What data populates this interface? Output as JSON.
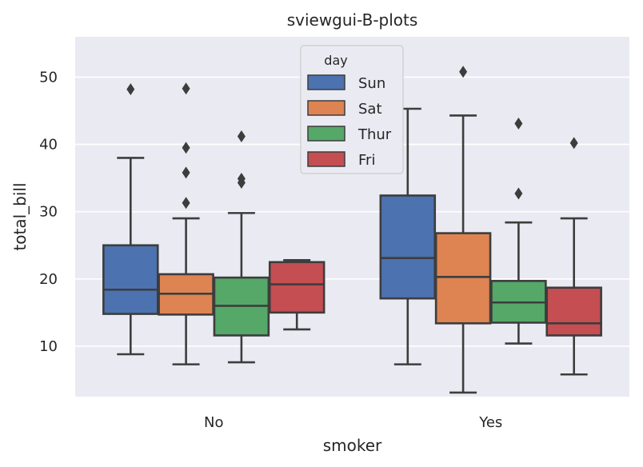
{
  "chart_data": {
    "type": "box",
    "title": "sviewgui-B-plots",
    "xlabel": "smoker",
    "ylabel": "total_bill",
    "categories": [
      "No",
      "Yes"
    ],
    "ylim": [
      2.5,
      56
    ],
    "yticks": [
      10,
      20,
      30,
      40,
      50
    ],
    "grid": true,
    "legend": {
      "title": "day",
      "placement": "top-center"
    },
    "colors": {
      "Sun": "#4c72b0",
      "Sat": "#dd8452",
      "Thur": "#55a868",
      "Fri": "#c44e52",
      "line": "#3d3d3d",
      "background": "#eaeaf2",
      "grid": "#ffffff"
    },
    "series": [
      {
        "name": "Sun",
        "boxes": [
          {
            "category": "No",
            "whislo": 8.8,
            "q1": 14.8,
            "med": 18.4,
            "q3": 25.0,
            "whishi": 38.0,
            "fliers": [
              48.2
            ]
          },
          {
            "category": "Yes",
            "whislo": 7.3,
            "q1": 17.1,
            "med": 23.1,
            "q3": 32.4,
            "whishi": 45.3,
            "fliers": []
          }
        ]
      },
      {
        "name": "Sat",
        "boxes": [
          {
            "category": "No",
            "whislo": 7.3,
            "q1": 14.7,
            "med": 17.8,
            "q3": 20.7,
            "whishi": 29.0,
            "fliers": [
              31.3,
              35.8,
              39.5,
              48.3
            ]
          },
          {
            "category": "Yes",
            "whislo": 3.1,
            "q1": 13.4,
            "med": 20.3,
            "q3": 26.8,
            "whishi": 44.3,
            "fliers": [
              50.8
            ]
          }
        ]
      },
      {
        "name": "Thur",
        "boxes": [
          {
            "category": "No",
            "whislo": 7.6,
            "q1": 11.6,
            "med": 16.0,
            "q3": 20.2,
            "whishi": 29.8,
            "fliers": [
              34.3,
              34.9,
              41.2
            ]
          },
          {
            "category": "Yes",
            "whislo": 10.4,
            "q1": 13.5,
            "med": 16.5,
            "q3": 19.7,
            "whishi": 28.4,
            "fliers": [
              32.7,
              43.1
            ]
          }
        ]
      },
      {
        "name": "Fri",
        "boxes": [
          {
            "category": "No",
            "whislo": 12.5,
            "q1": 15.0,
            "med": 19.2,
            "q3": 22.5,
            "whishi": 22.8,
            "fliers": []
          },
          {
            "category": "Yes",
            "whislo": 5.8,
            "q1": 11.6,
            "med": 13.4,
            "q3": 18.7,
            "whishi": 29.0,
            "fliers": [
              40.2
            ]
          }
        ]
      }
    ]
  }
}
